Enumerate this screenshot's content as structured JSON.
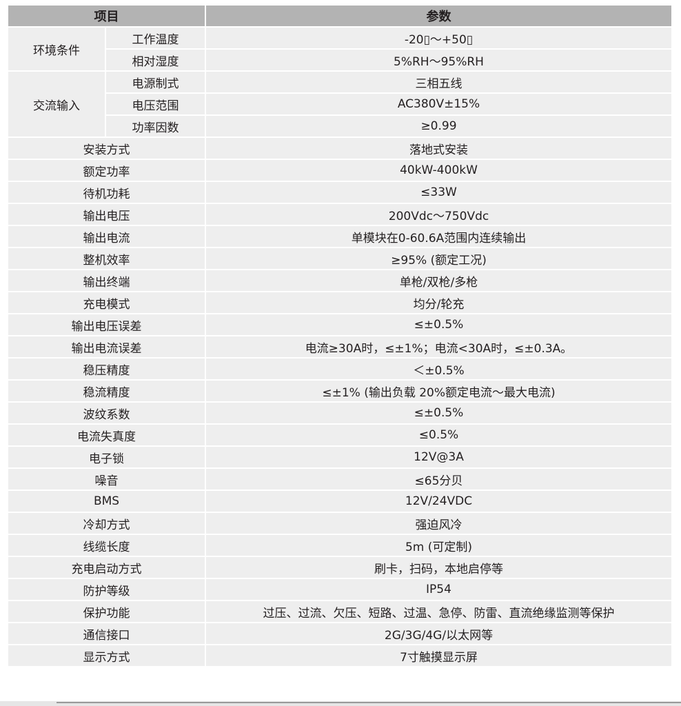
{
  "header": {
    "item": "项目",
    "param": "参数"
  },
  "groups": [
    {
      "label": "环境条件",
      "rows": [
        {
          "sub": "工作温度",
          "value": "-20▯～+50▯"
        },
        {
          "sub": "相对湿度",
          "value": "5%RH～95%RH"
        }
      ]
    },
    {
      "label": "交流输入",
      "rows": [
        {
          "sub": "电源制式",
          "value": "三相五线"
        },
        {
          "sub": "电压范围",
          "value": "AC380V±15%"
        },
        {
          "sub": "功率因数",
          "value": "≥0.99"
        }
      ]
    }
  ],
  "rows": [
    {
      "item": "安装方式",
      "value": "落地式安装"
    },
    {
      "item": "额定功率",
      "value": "40kW-400kW"
    },
    {
      "item": "待机功耗",
      "value": "≤33W"
    },
    {
      "item": "输出电压",
      "value": "200Vdc～750Vdc"
    },
    {
      "item": "输出电流",
      "value": "单模块在0-60.6A范围内连续输出"
    },
    {
      "item": "整机效率",
      "value": "≥95% (额定工况)"
    },
    {
      "item": "输出终端",
      "value": "单枪/双枪/多枪"
    },
    {
      "item": "充电模式",
      "value": "均分/轮充"
    },
    {
      "item": "输出电压误差",
      "value": "≤±0.5%"
    },
    {
      "item": "输出电流误差",
      "value": "电流≥30A时，≤±1%；电流<30A时，≤±0.3A。"
    },
    {
      "item": "稳压精度",
      "value": "＜±0.5%"
    },
    {
      "item": "稳流精度",
      "value": "≤±1% (输出负载 20%额定电流～最大电流)"
    },
    {
      "item": "波纹系数",
      "value": "≤±0.5%"
    },
    {
      "item": "电流失真度",
      "value": "≤0.5%"
    },
    {
      "item": "电子锁",
      "value": "12V@3A"
    },
    {
      "item": "噪音",
      "value": "≤65分贝"
    },
    {
      "item": "BMS",
      "value": "12V/24VDC"
    },
    {
      "item": "冷却方式",
      "value": "强迫风冷"
    },
    {
      "item": "线缆长度",
      "value": "5m (可定制)"
    },
    {
      "item": "充电启动方式",
      "value": "刷卡，扫码，本地启停等"
    },
    {
      "item": "防护等级",
      "value": "IP54"
    },
    {
      "item": "保护功能",
      "value": "过压、过流、欠压、短路、过温、急停、防雷、直流绝缘监测等保护"
    },
    {
      "item": "通信接口",
      "value": "2G/3G/4G/以太网等"
    },
    {
      "item": "显示方式",
      "value": "7寸触摸显示屏"
    }
  ]
}
